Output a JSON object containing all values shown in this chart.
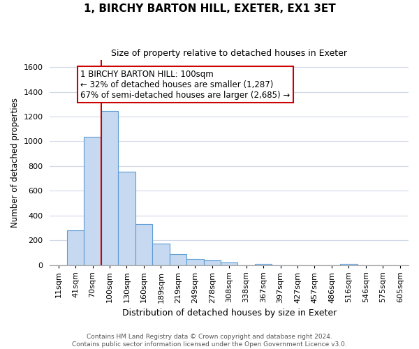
{
  "title": "1, BIRCHY BARTON HILL, EXETER, EX1 3ET",
  "subtitle": "Size of property relative to detached houses in Exeter",
  "xlabel": "Distribution of detached houses by size in Exeter",
  "ylabel": "Number of detached properties",
  "footer_line1": "Contains HM Land Registry data © Crown copyright and database right 2024.",
  "footer_line2": "Contains public sector information licensed under the Open Government Licence v3.0.",
  "bar_labels": [
    "11sqm",
    "41sqm",
    "70sqm",
    "100sqm",
    "130sqm",
    "160sqm",
    "189sqm",
    "219sqm",
    "249sqm",
    "278sqm",
    "308sqm",
    "338sqm",
    "367sqm",
    "397sqm",
    "427sqm",
    "457sqm",
    "486sqm",
    "516sqm",
    "546sqm",
    "575sqm",
    "605sqm"
  ],
  "bar_values": [
    0,
    280,
    1035,
    1245,
    755,
    330,
    175,
    85,
    50,
    38,
    18,
    0,
    10,
    0,
    0,
    0,
    0,
    10,
    0,
    0,
    0
  ],
  "bar_color": "#c6d9f0",
  "bar_edge_color": "#5b9bd5",
  "property_line_color": "#cc0000",
  "property_line_index": 3,
  "ylim": [
    0,
    1660
  ],
  "annotation_line1": "1 BIRCHY BARTON HILL: 100sqm",
  "annotation_line2": "← 32% of detached houses are smaller (1,287)",
  "annotation_line3": "67% of semi-detached houses are larger (2,685) →",
  "annotation_box_color": "#ffffff",
  "annotation_box_edge": "#cc0000",
  "background_color": "#ffffff",
  "grid_color": "#d0d8e8",
  "title_fontsize": 11,
  "subtitle_fontsize": 9,
  "ylabel_fontsize": 8.5,
  "xlabel_fontsize": 9,
  "tick_fontsize": 8,
  "footer_fontsize": 6.5,
  "yticks": [
    0,
    200,
    400,
    600,
    800,
    1000,
    1200,
    1400,
    1600
  ]
}
